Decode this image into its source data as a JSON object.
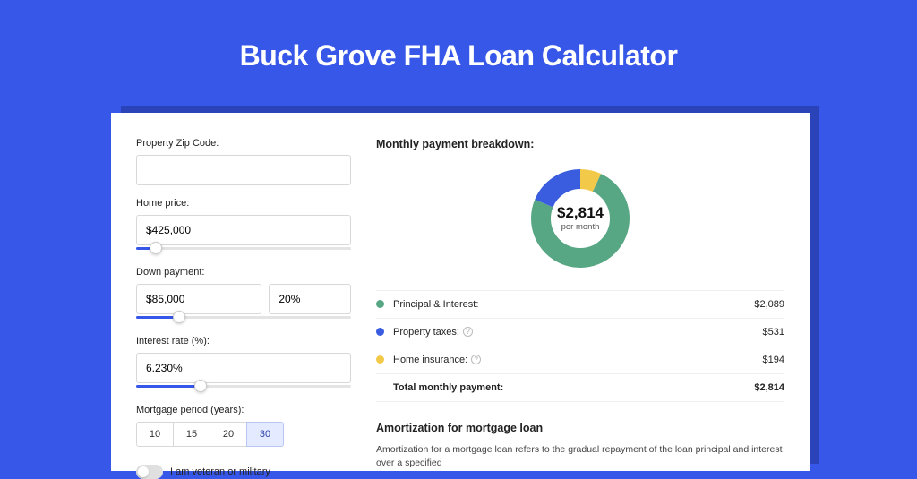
{
  "page": {
    "title": "Buck Grove FHA Loan Calculator",
    "bg_color": "#3757e8",
    "shadow_color": "#2b43b8",
    "card_bg": "#ffffff"
  },
  "form": {
    "zip": {
      "label": "Property Zip Code:",
      "value": ""
    },
    "price": {
      "label": "Home price:",
      "value": "$425,000",
      "slider_pct": 9
    },
    "down": {
      "label": "Down payment:",
      "value": "$85,000",
      "pct": "20%",
      "slider_pct": 20
    },
    "rate": {
      "label": "Interest rate (%):",
      "value": "6.230%",
      "slider_pct": 30
    },
    "period": {
      "label": "Mortgage period (years):",
      "options": [
        "10",
        "15",
        "20",
        "30"
      ],
      "selected": "30"
    },
    "veteran": {
      "label": "I am veteran or military",
      "on": false
    }
  },
  "breakdown": {
    "title": "Monthly payment breakdown:",
    "center_value": "$2,814",
    "center_sub": "per month",
    "donut": {
      "radius": 44,
      "stroke": 22,
      "segments": [
        {
          "key": "insurance",
          "color": "#f3c94a",
          "value": 194
        },
        {
          "key": "principal",
          "color": "#57a784",
          "value": 2089
        },
        {
          "key": "taxes",
          "color": "#3a5de0",
          "value": 531
        }
      ]
    },
    "items": [
      {
        "label": "Principal & Interest:",
        "value": "$2,089",
        "color": "#57a784",
        "info": false
      },
      {
        "label": "Property taxes:",
        "value": "$531",
        "color": "#3a5de0",
        "info": true
      },
      {
        "label": "Home insurance:",
        "value": "$194",
        "color": "#f3c94a",
        "info": true
      }
    ],
    "total": {
      "label": "Total monthly payment:",
      "value": "$2,814"
    }
  },
  "amort": {
    "title": "Amortization for mortgage loan",
    "text": "Amortization for a mortgage loan refers to the gradual repayment of the loan principal and interest over a specified"
  }
}
